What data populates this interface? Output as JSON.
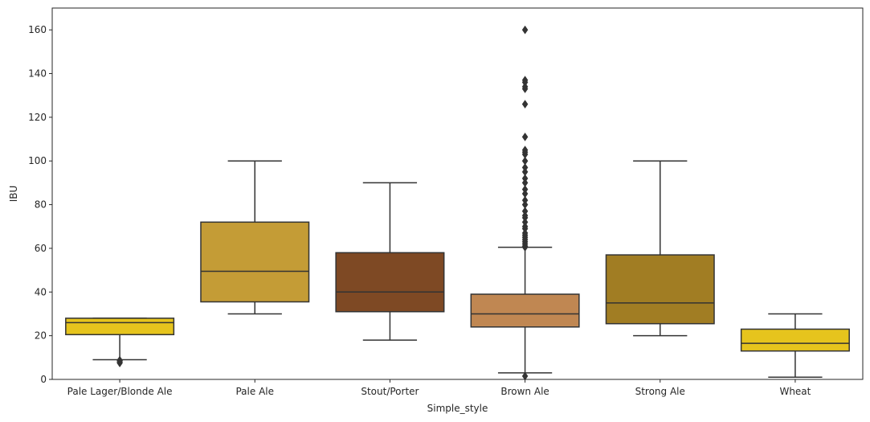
{
  "chart_data": {
    "type": "box",
    "xlabel": "Simple_style",
    "ylabel": "IBU",
    "ylim": [
      0,
      170
    ],
    "yticks": [
      0,
      20,
      40,
      60,
      80,
      100,
      120,
      140,
      160
    ],
    "grid": false,
    "legend": "none",
    "categories": [
      "Pale Lager/Blonde Ale",
      "Pale Ale",
      "Stout/Porter",
      "Brown Ale",
      "Strong Ale",
      "Wheat"
    ],
    "boxes": [
      {
        "category": "Pale Lager/Blonde Ale",
        "color": "#e6c41d",
        "whisker_low": 9,
        "q1": 20.5,
        "median": 26,
        "q3": 28,
        "whisker_high": 28,
        "outliers": [
          8,
          8.5,
          7.5,
          8.8
        ]
      },
      {
        "category": "Pale Ale",
        "color": "#c49c36",
        "whisker_low": 30,
        "q1": 35.5,
        "median": 49.5,
        "q3": 72,
        "whisker_high": 100,
        "outliers": []
      },
      {
        "category": "Stout/Porter",
        "color": "#7e4924",
        "whisker_low": 18,
        "q1": 31,
        "median": 40,
        "q3": 58,
        "whisker_high": 90,
        "outliers": []
      },
      {
        "category": "Brown Ale",
        "color": "#c08752",
        "whisker_low": 3,
        "q1": 24,
        "median": 30,
        "q3": 39,
        "whisker_high": 60.5,
        "outliers": [
          1.5,
          60.5,
          61,
          62,
          63,
          64,
          65,
          66,
          67,
          69,
          70,
          72,
          74,
          75,
          77,
          80,
          82,
          85,
          87,
          90,
          92,
          95,
          97,
          100,
          103,
          104,
          105,
          111,
          126,
          133,
          134,
          136,
          137,
          160
        ]
      },
      {
        "category": "Strong Ale",
        "color": "#a17d23",
        "whisker_low": 20,
        "q1": 25.5,
        "median": 35,
        "q3": 57,
        "whisker_high": 100,
        "outliers": []
      },
      {
        "category": "Wheat",
        "color": "#e6c41d",
        "whisker_low": 1,
        "q1": 13,
        "median": 16.5,
        "q3": 23,
        "whisker_high": 30,
        "outliers": []
      }
    ]
  }
}
